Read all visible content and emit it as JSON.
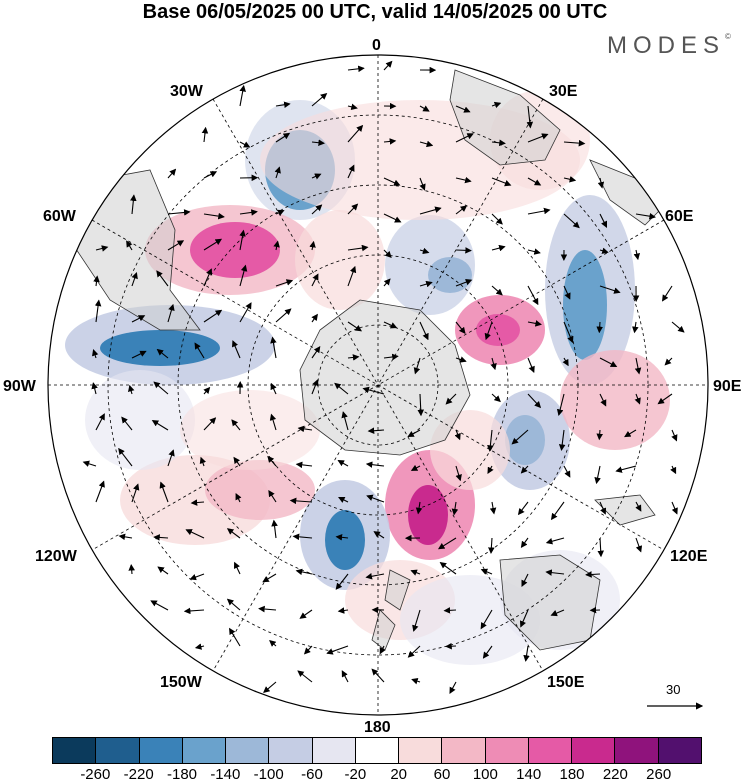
{
  "title": "Base 06/05/2025 00 UTC, valid 14/05/2025 00 UTC",
  "logo": "MODES",
  "logo_mark": "©",
  "longitude_labels": {
    "n0": "0",
    "e30": "30E",
    "e60": "60E",
    "e90": "90E",
    "e120": "120E",
    "e150": "150E",
    "s180": "180",
    "w150": "150W",
    "w120": "120W",
    "w90": "90W",
    "w60": "60W",
    "w30": "30W"
  },
  "reference_vector": {
    "label": "30"
  },
  "colorbar": {
    "colors": [
      "#0b3a5c",
      "#1f5e8e",
      "#3a82b8",
      "#6aa2cc",
      "#9db8d8",
      "#c5cde4",
      "#e6e6f1",
      "#ffffff",
      "#f8dcdc",
      "#f3b8c6",
      "#ee8cb5",
      "#e55aa6",
      "#c92a8e",
      "#8f137c",
      "#52106e"
    ],
    "ticks": [
      "-260",
      "-220",
      "-180",
      "-140",
      "-100",
      "-60",
      "-20",
      "20",
      "60",
      "100",
      "140",
      "180",
      "220",
      "260"
    ]
  },
  "map_features": [
    "polar stereographic projection",
    "anomaly shading",
    "wind vectors",
    "coastlines",
    "graticule"
  ]
}
